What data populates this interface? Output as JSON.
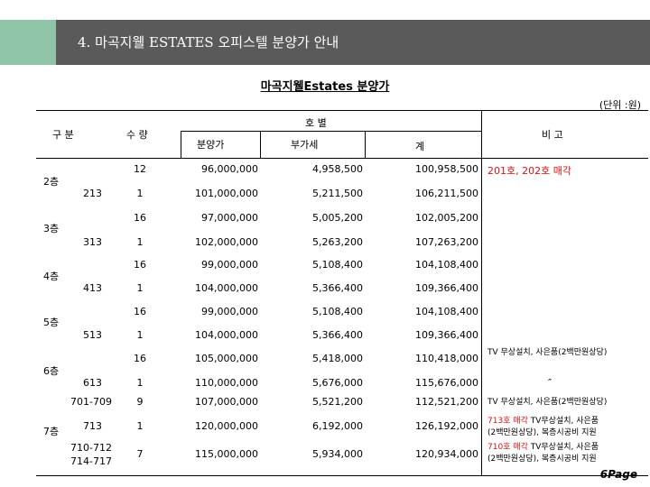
{
  "header": {
    "title": "4. 마곡지웰 ESTATES 오피스텔 분양가 안내"
  },
  "doc": {
    "title": "마곡지웰Estates  분양가",
    "unit": "(단위 :원)"
  },
  "table": {
    "headers": {
      "gubun": "구   분",
      "sudang": "수 량",
      "hobyeol": "호   별",
      "bunyangga": "분양가",
      "bugase": "부가세",
      "gye": "계",
      "bigo": "비  고"
    },
    "floors": [
      "2층",
      "3층",
      "4층",
      "5층",
      "6층",
      "7층"
    ],
    "rows": [
      {
        "unit": "",
        "qty": "12",
        "price": "96,000,000",
        "vat": "4,958,500",
        "total": "100,958,500"
      },
      {
        "unit": "213",
        "qty": "1",
        "price": "101,000,000",
        "vat": "5,211,500",
        "total": "106,211,500"
      },
      {
        "unit": "",
        "qty": "16",
        "price": "97,000,000",
        "vat": "5,005,200",
        "total": "102,005,200"
      },
      {
        "unit": "313",
        "qty": "1",
        "price": "102,000,000",
        "vat": "5,263,200",
        "total": "107,263,200"
      },
      {
        "unit": "",
        "qty": "16",
        "price": "99,000,000",
        "vat": "5,108,400",
        "total": "104,108,400"
      },
      {
        "unit": "413",
        "qty": "1",
        "price": "104,000,000",
        "vat": "5,366,400",
        "total": "109,366,400"
      },
      {
        "unit": "",
        "qty": "16",
        "price": "99,000,000",
        "vat": "5,108,400",
        "total": "104,108,400"
      },
      {
        "unit": "513",
        "qty": "1",
        "price": "104,000,000",
        "vat": "5,366,400",
        "total": "109,366,400"
      },
      {
        "unit": "",
        "qty": "16",
        "price": "105,000,000",
        "vat": "5,418,000",
        "total": "110,418,000"
      },
      {
        "unit": "613",
        "qty": "1",
        "price": "110,000,000",
        "vat": "5,676,000",
        "total": "115,676,000"
      },
      {
        "unit": "701-709",
        "qty": "9",
        "price": "107,000,000",
        "vat": "5,521,200",
        "total": "112,521,200"
      },
      {
        "unit": "713",
        "qty": "1",
        "price": "120,000,000",
        "vat": "6,192,000",
        "total": "126,192,000"
      },
      {
        "unit": "710-712",
        "unit2": "714-717",
        "qty": "7",
        "price": "115,000,000",
        "vat": "5,934,000",
        "total": "120,934,000"
      }
    ],
    "notes": {
      "n1": "201호, 202호 매각",
      "n6a": "TV 무상설치, 사은품(2백만원상당)",
      "n6b": "″",
      "n7a": "TV 무상설치, 사은품(2백만원상당)",
      "n7b_red": "713호 매각",
      "n7b_rest": " TV무상설치, 사은품",
      "n7b_line2": "(2백만원상당), 복층시공비 지원",
      "n7c_red": "710호 매각",
      "n7c_rest": " TV무상설치, 사은품",
      "n7c_line2": "(2백만원상당), 복층시공비 지원"
    }
  },
  "footer": {
    "page": "6Page"
  },
  "colors": {
    "header_bar": "#5a5a5a",
    "header_accent": "#8fc4a8",
    "note_red": "#d11111"
  }
}
